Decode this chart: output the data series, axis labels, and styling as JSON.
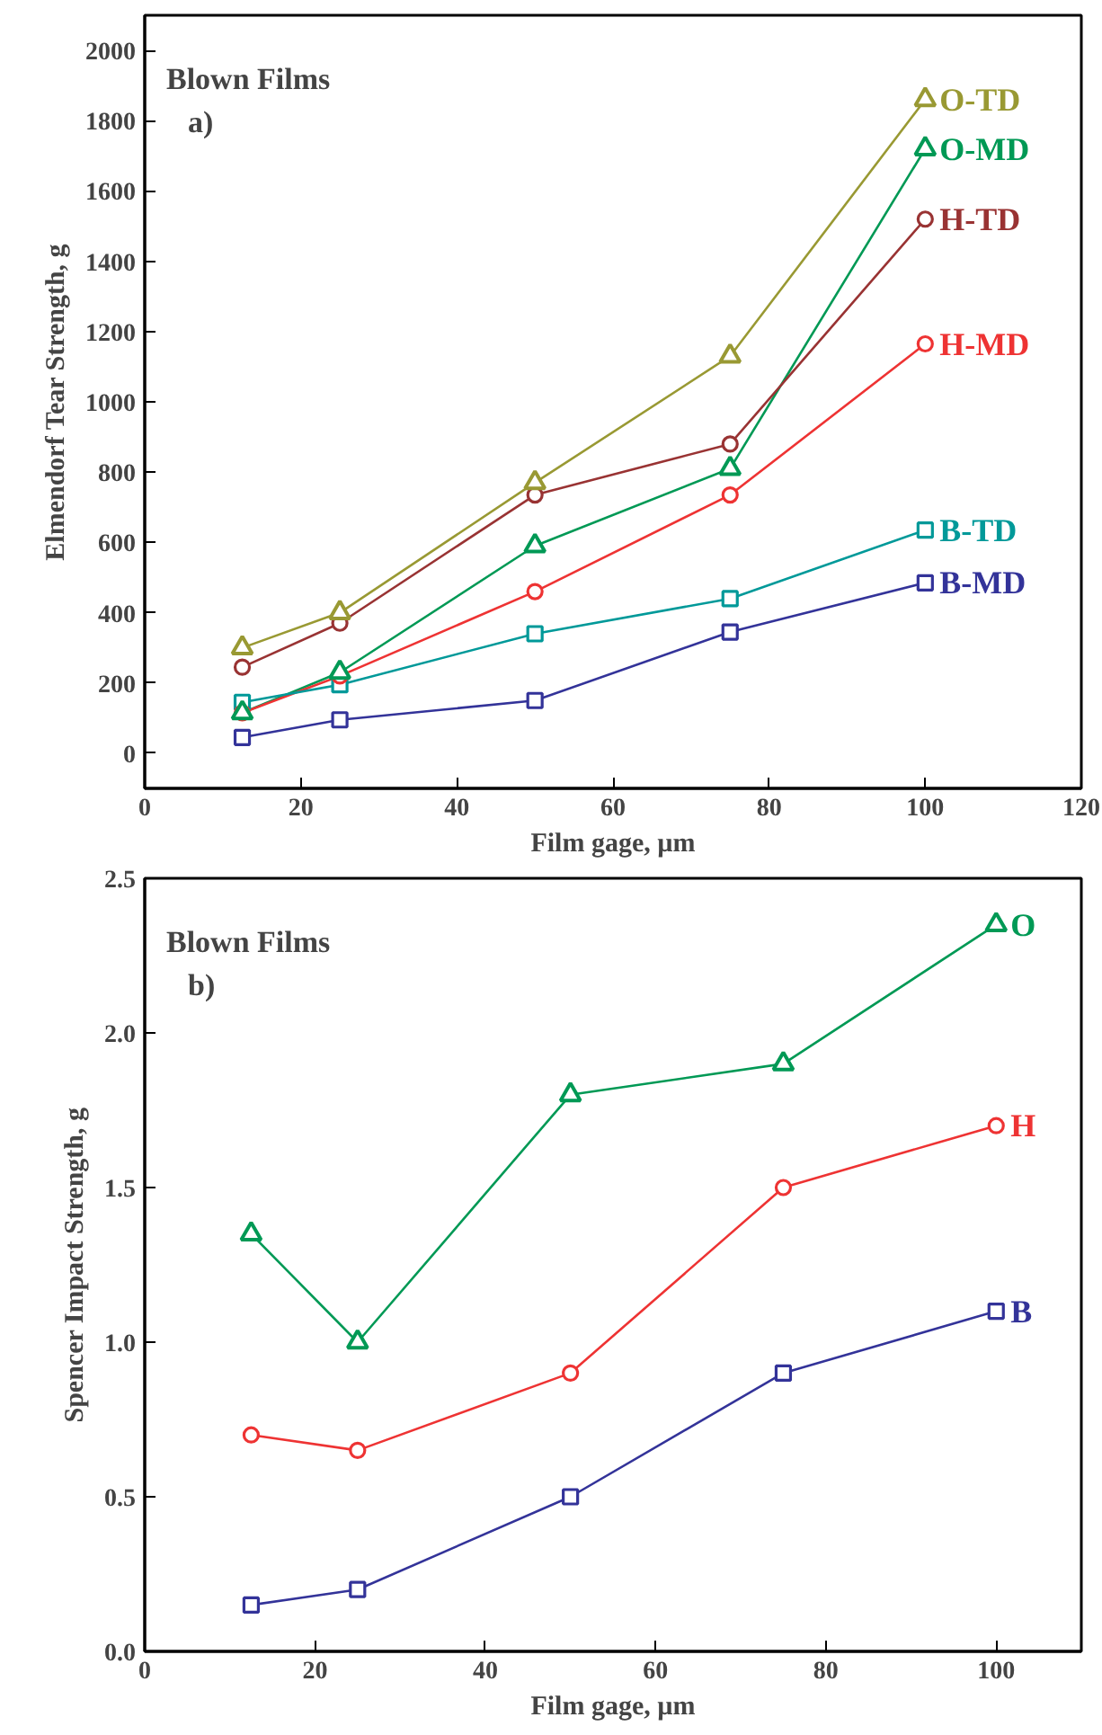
{
  "chart_data": [
    {
      "type": "line",
      "xlabel": "Film gage, µm",
      "ylabel": "Elmendorf Tear Strength, g",
      "annotations": [
        "Blown Films",
        "a)"
      ],
      "x": [
        12.5,
        25,
        50,
        75,
        100
      ],
      "xlim": [
        0,
        120
      ],
      "xticks": [
        0,
        20,
        40,
        60,
        80,
        100,
        120
      ],
      "ylim": [
        -100,
        2100
      ],
      "yticks": [
        0,
        200,
        400,
        600,
        800,
        1000,
        1200,
        1400,
        1600,
        1800,
        2000
      ],
      "grid": false,
      "series": [
        {
          "name": "O-TD",
          "color": "#999933",
          "marker": "triangle",
          "values": [
            300,
            400,
            770,
            1130,
            1860
          ]
        },
        {
          "name": "O-MD",
          "color": "#009955",
          "marker": "triangle",
          "values": [
            115,
            230,
            590,
            810,
            1720
          ]
        },
        {
          "name": "H-TD",
          "color": "#993333",
          "marker": "circle",
          "values": [
            245,
            370,
            735,
            880,
            1520
          ]
        },
        {
          "name": "H-MD",
          "color": "#ee3333",
          "marker": "circle",
          "values": [
            115,
            220,
            460,
            735,
            1165
          ]
        },
        {
          "name": "B-TD",
          "color": "#009999",
          "marker": "square",
          "values": [
            145,
            195,
            340,
            440,
            635
          ]
        },
        {
          "name": "B-MD",
          "color": "#333399",
          "marker": "square",
          "values": [
            45,
            95,
            150,
            345,
            485
          ]
        }
      ]
    },
    {
      "type": "line",
      "xlabel": "Film gage, µm",
      "ylabel": "Spencer Impact Strength, g",
      "annotations": [
        "Blown Films",
        "b)"
      ],
      "x": [
        12.5,
        25,
        50,
        75,
        100
      ],
      "xlim": [
        0,
        110
      ],
      "xticks": [
        0,
        20,
        40,
        60,
        80,
        100
      ],
      "ylim": [
        0,
        2.5
      ],
      "yticks": [
        {
          "value": 0,
          "label": "0.0"
        },
        {
          "value": 0.5,
          "label": "0.5"
        },
        {
          "value": 1,
          "label": "1.0"
        },
        {
          "value": 1.5,
          "label": "1.5"
        },
        {
          "value": 2,
          "label": "2.0"
        },
        {
          "value": 2.5,
          "label": "2.5"
        }
      ],
      "grid": false,
      "series": [
        {
          "name": "O",
          "color": "#009955",
          "marker": "triangle",
          "values": [
            1.35,
            1.0,
            1.8,
            1.9,
            2.35
          ]
        },
        {
          "name": "H",
          "color": "#ee3333",
          "marker": "circle",
          "values": [
            0.7,
            0.65,
            0.9,
            1.5,
            1.7
          ]
        },
        {
          "name": "B",
          "color": "#333399",
          "marker": "square",
          "values": [
            0.15,
            0.2,
            0.5,
            0.9,
            1.1
          ]
        }
      ]
    }
  ]
}
